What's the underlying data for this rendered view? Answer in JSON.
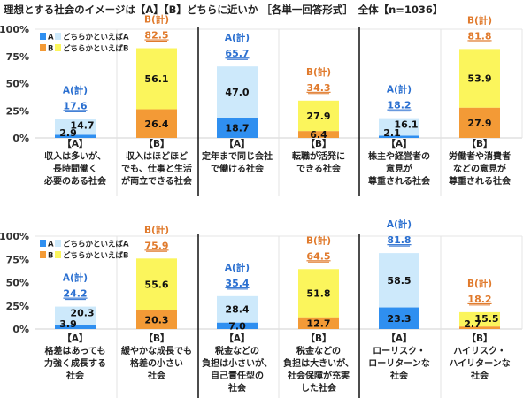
{
  "title": "理想とする社会のイメージは【A】【B】どちらに近いか ［各単一回答形式］　全体【n=1036】",
  "colors": {
    "A": "#2f8ff0",
    "leanA": "#cde9fb",
    "B": "#f39a36",
    "leanB": "#fbf55c",
    "totalA": "#2a6fd0",
    "totalB": "#e07a2c"
  },
  "chart_data": [
    {
      "type": "bar",
      "stacked": true,
      "ylim": [
        0,
        100
      ],
      "yticks": [
        "0%",
        "25%",
        "50%",
        "75%",
        "100%"
      ],
      "legend": [
        "A",
        "どちらかといえばA",
        "B",
        "どちらかといえばB"
      ],
      "legend_position": "top-left",
      "bars": [
        {
          "side": "A",
          "tag": "【A】",
          "label": [
            "収入は多いが、",
            "長時間働く",
            "必要のある社会"
          ],
          "strong": 2.9,
          "lean": 14.7,
          "total_label": "A(計)",
          "total": "17.6"
        },
        {
          "side": "B",
          "tag": "【B】",
          "label": [
            "収入はほどほど",
            "でも、仕事と生活",
            "が両立できる社会"
          ],
          "strong": 26.4,
          "lean": 56.1,
          "total_label": "B(計)",
          "total": "82.5"
        },
        {
          "side": "A",
          "tag": "【A】",
          "label": [
            "定年まで同じ会社",
            "で働ける社会"
          ],
          "strong": 18.7,
          "lean": 47.0,
          "total_label": "A(計)",
          "total": "65.7"
        },
        {
          "side": "B",
          "tag": "【B】",
          "label": [
            "転職が活発に",
            "できる社会"
          ],
          "strong": 6.4,
          "lean": 27.9,
          "total_label": "B(計)",
          "total": "34.3"
        },
        {
          "side": "A",
          "tag": "【A】",
          "label": [
            "株主や経営者の",
            "意見が",
            "尊重される社会"
          ],
          "strong": 2.1,
          "lean": 16.1,
          "total_label": "A(計)",
          "total": "18.2"
        },
        {
          "side": "B",
          "tag": "【B】",
          "label": [
            "労働者や消費者",
            "などの意見が",
            "尊重される社会"
          ],
          "strong": 27.9,
          "lean": 53.9,
          "total_label": "B(計)",
          "total": "81.8"
        }
      ]
    },
    {
      "type": "bar",
      "stacked": true,
      "ylim": [
        0,
        100
      ],
      "yticks": [
        "0%",
        "25%",
        "50%",
        "75%",
        "100%"
      ],
      "legend": [
        "A",
        "どちらかといえばA",
        "B",
        "どちらかといえばB"
      ],
      "legend_position": "top-left",
      "bars": [
        {
          "side": "A",
          "tag": "【A】",
          "label": [
            "格差はあっても",
            "力強く成長する",
            "社会"
          ],
          "strong": 3.9,
          "lean": 20.3,
          "total_label": "A(計)",
          "total": "24.2"
        },
        {
          "side": "B",
          "tag": "【B】",
          "label": [
            "緩やかな成長でも",
            "格差の小さい",
            "社会"
          ],
          "strong": 20.3,
          "lean": 55.6,
          "total_label": "B(計)",
          "total": "75.9"
        },
        {
          "side": "A",
          "tag": "【A】",
          "label": [
            "税金などの",
            "負担は小さいが、",
            "自己責任型の",
            "社会"
          ],
          "strong": 7.0,
          "lean": 28.4,
          "total_label": "A(計)",
          "total": "35.4"
        },
        {
          "side": "B",
          "tag": "【B】",
          "label": [
            "税金などの",
            "負担は大きいが、",
            "社会保障が充実",
            "した社会"
          ],
          "strong": 12.7,
          "lean": 51.8,
          "total_label": "B(計)",
          "total": "64.5"
        },
        {
          "side": "A",
          "tag": "【A】",
          "label": [
            "ローリスク・",
            "ローリターンな",
            "社会"
          ],
          "strong": 23.3,
          "lean": 58.5,
          "total_label": "A(計)",
          "total": "81.8"
        },
        {
          "side": "B",
          "tag": "【B】",
          "label": [
            "ハイリスク・",
            "ハイリターンな",
            "社会"
          ],
          "strong": 2.7,
          "lean": 15.5,
          "total_label": "B(計)",
          "total": "18.2"
        }
      ]
    }
  ]
}
